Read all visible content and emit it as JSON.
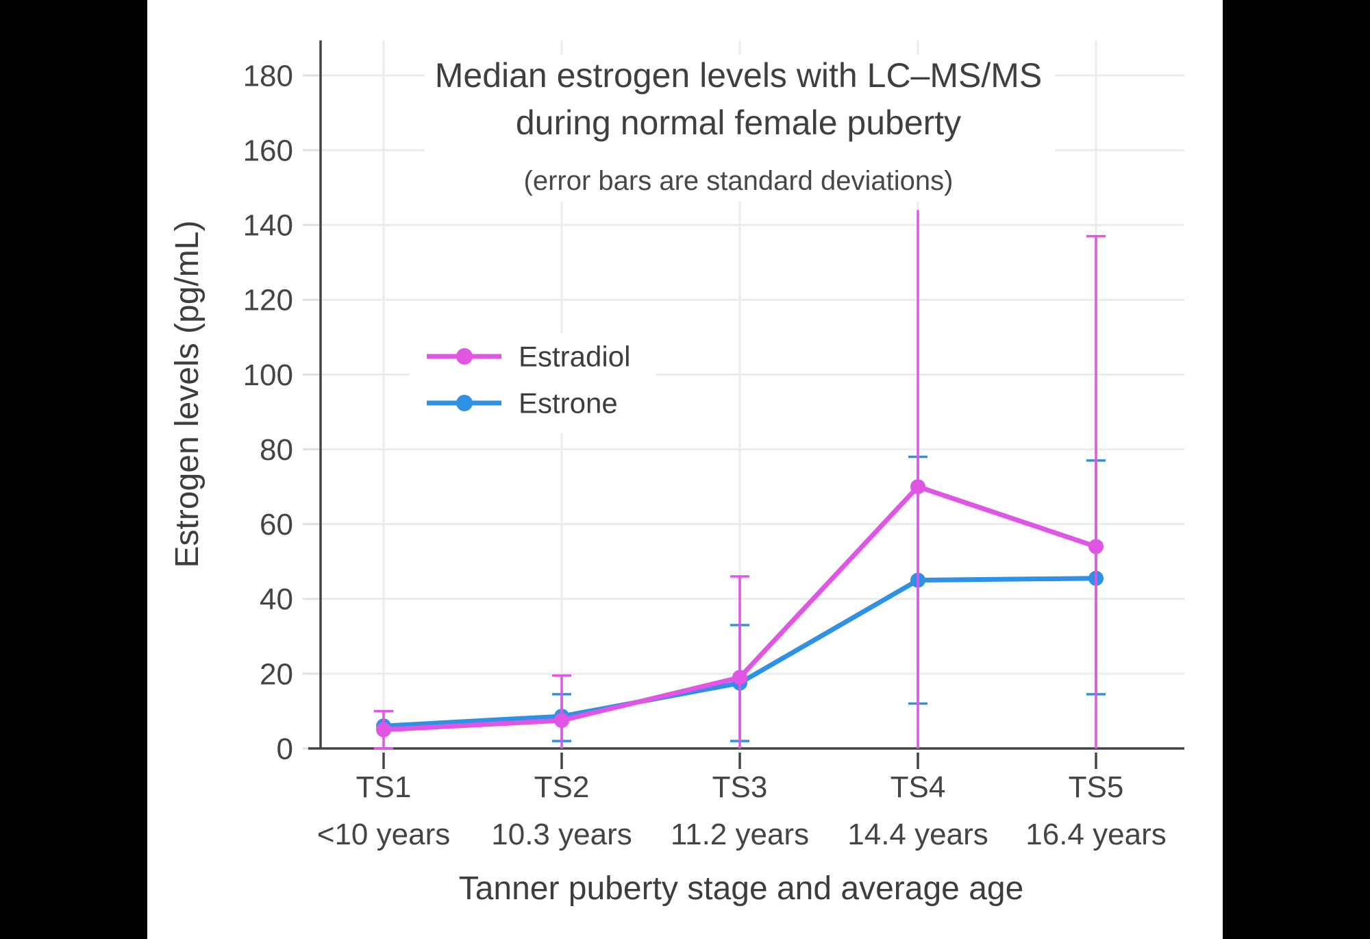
{
  "chart_data": {
    "type": "line",
    "title_line1": "Median estrogen levels with LC–MS/MS",
    "title_line2": "during normal female puberty",
    "subtitle": "(error bars are standard deviations)",
    "xlabel": "Tanner puberty stage and average age",
    "ylabel": "Estrogen levels (pg/mL)",
    "categories": [
      "TS1",
      "TS2",
      "TS3",
      "TS4",
      "TS5"
    ],
    "category_sublabels": [
      "<10 years",
      "10.3 years",
      "11.2 years",
      "14.4 years",
      "16.4 years"
    ],
    "y_ticks": [
      0,
      20,
      40,
      60,
      80,
      100,
      120,
      140,
      160,
      180
    ],
    "ylim": [
      0,
      190
    ],
    "grid": true,
    "legend_position": "inside-upper-left",
    "series": [
      {
        "name": "Estradiol",
        "color": "#E155E5",
        "values": [
          5,
          7.5,
          19,
          70,
          54
        ],
        "error_bar_top": [
          10,
          19.5,
          46,
          144,
          137
        ],
        "error_bar_bottom": [
          0,
          0,
          0,
          0,
          0
        ],
        "error_top_cap": [
          true,
          true,
          true,
          false,
          true
        ],
        "error_bottom_cap": [
          true,
          false,
          false,
          false,
          false
        ]
      },
      {
        "name": "Estrone",
        "color": "#2E91E5",
        "values": [
          6,
          8.6,
          17.5,
          45,
          45.5
        ],
        "error_bar_top": [
          null,
          14.5,
          33,
          78,
          77
        ],
        "error_bar_bottom": [
          null,
          2,
          2,
          12,
          14.5
        ],
        "error_top_cap": [
          false,
          true,
          true,
          true,
          true
        ],
        "error_bottom_cap": [
          false,
          true,
          true,
          true,
          true
        ]
      }
    ],
    "style": {
      "page_background": "#000000",
      "plot_background": "#FFFFFF",
      "grid_color": "#ECECEC",
      "outer_tick_color": "#E0E0E0",
      "axis_color": "#444444",
      "text_color": "#3F3F3F"
    }
  }
}
